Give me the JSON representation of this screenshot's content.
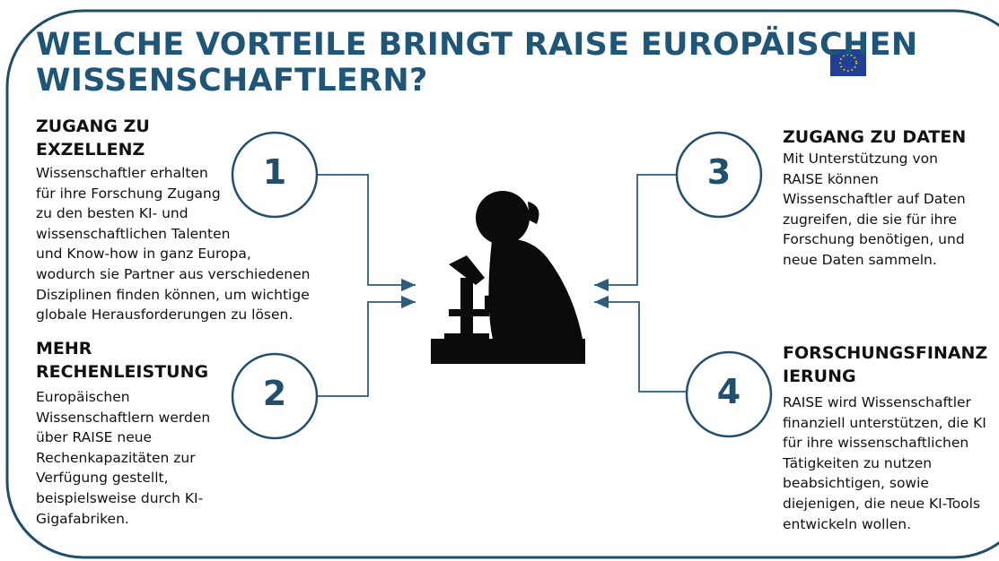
{
  "title": [
    "WELCHE VORTEILE BRINGT RAISE EUROPÄISCHEN",
    "WISSENSCHAFTLERN?"
  ],
  "items": [
    {
      "number": "1",
      "heading": [
        "ZUGANG ZU",
        "EXZELLENZ"
      ],
      "body": [
        "Wissenschaftler erhalten",
        "für ihre Forschung Zugang",
        "zu den besten KI- und",
        "wissenschaftlichen Talenten",
        "und Know-how in ganz Europa,",
        "wodurch sie Partner aus verschiedenen",
        "Disziplinen finden können, um wichtige",
        "globale Herausforderungen zu lösen."
      ]
    },
    {
      "number": "2",
      "heading": [
        "MEHR",
        "RECHENLEISTUNG"
      ],
      "body": [
        "Europäischen",
        "Wissenschaftlern werden",
        "über RAISE neue",
        "Rechenkapazitäten zur",
        "Verfügung gestellt,",
        "beispielsweise durch KI-",
        "Gigafabriken."
      ]
    },
    {
      "number": "3",
      "heading": [
        "ZUGANG ZU DATEN"
      ],
      "body": [
        "Mit Unterstützung von",
        "RAISE können",
        "Wissenschaftler auf Daten",
        "zugreifen, die sie für ihre",
        "Forschung benötigen, und",
        "neue Daten sammeln."
      ]
    },
    {
      "number": "4",
      "heading": [
        "FORSCHUNGSFINANZ",
        "IERUNG"
      ],
      "body": [
        "RAISE wird Wissenschaftler",
        "finanziell unterstützen, die KI",
        "für ihre wissenschaftlichen",
        "Tätigkeiten zu nutzen",
        "beabsichtigen, sowie",
        "diejenigen, die neue KI-Tools",
        "entwickeln wollen."
      ]
    }
  ]
}
